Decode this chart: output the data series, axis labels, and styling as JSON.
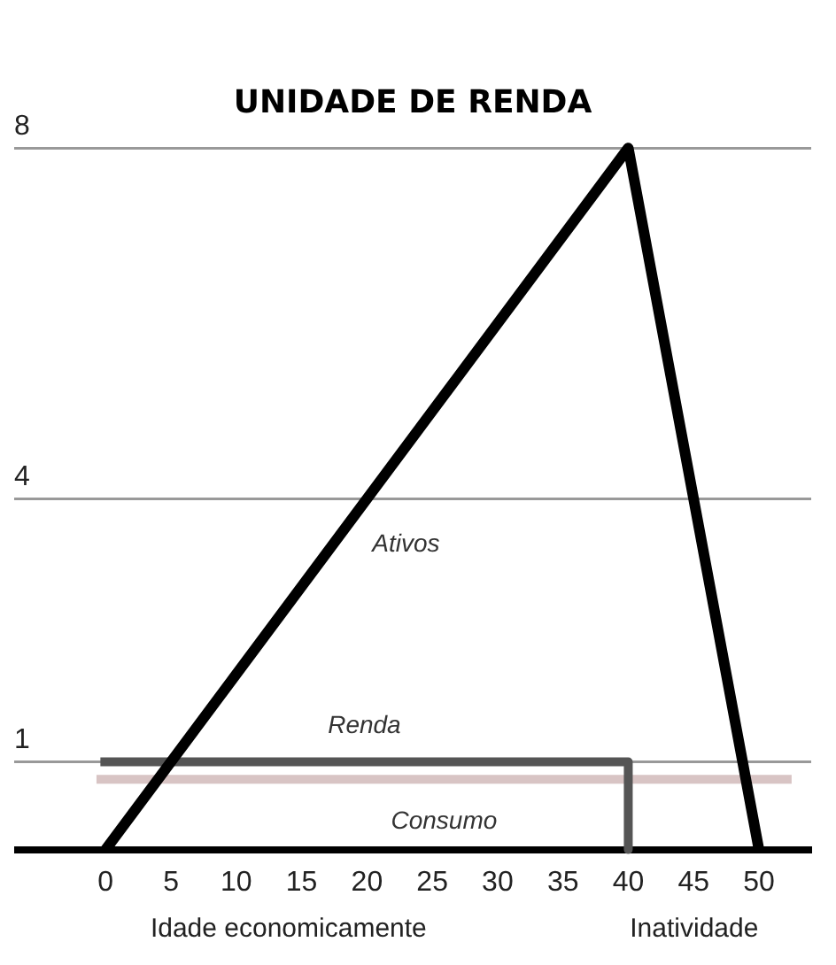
{
  "chart_data": {
    "type": "line",
    "title": "UNIDADE DE RENDA",
    "series": [
      {
        "name": "Ativos",
        "color": "#000000",
        "x": [
          0,
          40,
          50
        ],
        "values": [
          0,
          8,
          0
        ]
      },
      {
        "name": "Renda",
        "color": "#555555",
        "x": [
          -0.4,
          40,
          40
        ],
        "values": [
          1,
          1,
          0
        ]
      },
      {
        "name": "Consumo",
        "color": "#d8c4c4",
        "x": [
          -0.7,
          52.5
        ],
        "values": [
          0.8,
          0.8
        ]
      }
    ],
    "xlim": [
      -7,
      54
    ],
    "xticks": [
      0,
      5,
      10,
      15,
      20,
      25,
      30,
      35,
      40,
      45,
      50
    ],
    "ylim": [
      0,
      8
    ],
    "yticks": [
      1,
      4,
      8
    ],
    "grid": "y",
    "legend": false,
    "marker": "none",
    "line_style": "solid",
    "annotations": [
      "Idade economicamente",
      "Inatividade"
    ]
  }
}
